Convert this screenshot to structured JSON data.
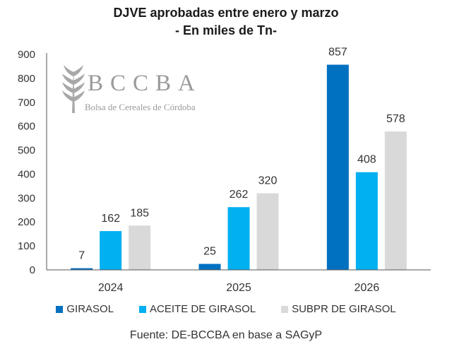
{
  "chart_data": {
    "type": "bar",
    "title": "DJVE aprobadas entre enero y marzo",
    "subtitle": "- En miles de Tn-",
    "xlabel": "",
    "ylabel": "",
    "ylim": [
      0,
      900
    ],
    "yticks": [
      0,
      100,
      200,
      300,
      400,
      500,
      600,
      700,
      800,
      900
    ],
    "grid": false,
    "legend_position": "bottom",
    "categories": [
      "2024",
      "2025",
      "2026"
    ],
    "series": [
      {
        "name": "GIRASOL",
        "color": "#0070C0",
        "values": [
          7,
          25,
          857
        ]
      },
      {
        "name": "ACEITE DE GIRASOL",
        "color": "#00B0F0",
        "values": [
          162,
          262,
          408
        ]
      },
      {
        "name": "SUBPR DE GIRASOL",
        "color": "#D9D9D9",
        "values": [
          185,
          320,
          578
        ]
      }
    ],
    "source": "Fuente: DE-BCCBA en base a SAGyP"
  },
  "logo": {
    "acronym": "BCCBA",
    "name": "Bolsa de Cereales de Córdoba"
  }
}
